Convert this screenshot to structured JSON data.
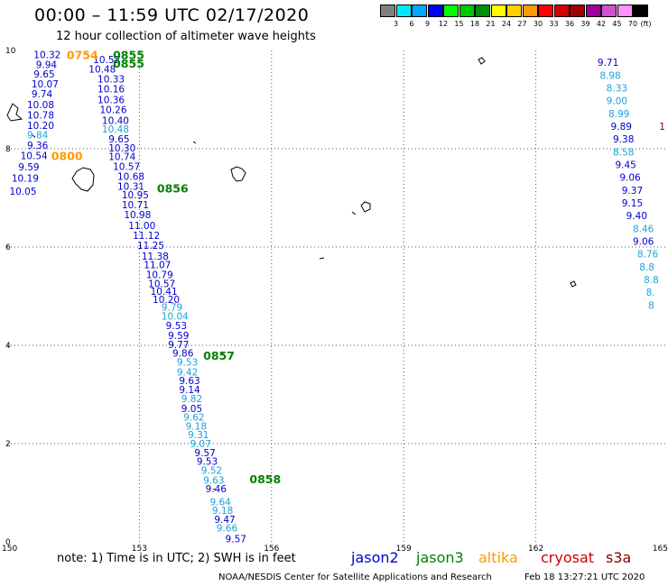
{
  "header": {
    "title": "00:00 – 11:59 UTC 02/17/2020",
    "subtitle": "12 hour collection of altimeter wave heights"
  },
  "legend": {
    "unit": "(ft)",
    "bins": [
      {
        "label": "3",
        "color": "#7f7f7f"
      },
      {
        "label": "6",
        "color": "#00e8ff"
      },
      {
        "label": "9",
        "color": "#00a8ff"
      },
      {
        "label": "12",
        "color": "#0000ff"
      },
      {
        "label": "15",
        "color": "#00ff00"
      },
      {
        "label": "18",
        "color": "#00c800"
      },
      {
        "label": "21",
        "color": "#009000"
      },
      {
        "label": "24",
        "color": "#ffff00"
      },
      {
        "label": "27",
        "color": "#ffd000"
      },
      {
        "label": "30",
        "color": "#ff9a00"
      },
      {
        "label": "33",
        "color": "#ff0000"
      },
      {
        "label": "36",
        "color": "#d40000"
      },
      {
        "label": "39",
        "color": "#a00000"
      },
      {
        "label": "42",
        "color": "#a000a0"
      },
      {
        "label": "45",
        "color": "#d050d0"
      },
      {
        "label": "70",
        "color": "#ff90ff"
      },
      {
        "label": "",
        "color": "#000000"
      }
    ]
  },
  "map": {
    "lon_range": [
      150,
      165
    ],
    "lat_range": [
      0,
      10
    ],
    "lon_ticks": [
      "150",
      "153",
      "156",
      "159",
      "162",
      "165"
    ],
    "lat_ticks": [
      "0",
      "2",
      "4",
      "6",
      "8",
      "10"
    ]
  },
  "satellite_colors": {
    "jason2": "#0000cc",
    "jason3": "#008000",
    "altika": "#ff9900",
    "cryosat": "#cc0000",
    "s3a": "#880000",
    "light": "#1aa3d9"
  },
  "tracks": [
    {
      "name": "jason2-track-west",
      "points": [
        {
          "lon": 150.6,
          "lat": 9.92,
          "v": "10.32",
          "c": "dark"
        },
        {
          "lon": 150.65,
          "lat": 9.72,
          "v": "9.94",
          "c": "dark"
        },
        {
          "lon": 150.6,
          "lat": 9.52,
          "v": "9.65",
          "c": "dark"
        },
        {
          "lon": 150.55,
          "lat": 9.32,
          "v": "10.07",
          "c": "dark"
        },
        {
          "lon": 150.55,
          "lat": 9.12,
          "v": "9.74",
          "c": "dark"
        },
        {
          "lon": 150.45,
          "lat": 8.9,
          "v": "10.08",
          "c": "dark"
        },
        {
          "lon": 150.45,
          "lat": 8.69,
          "v": "10.78",
          "c": "dark"
        },
        {
          "lon": 150.45,
          "lat": 8.48,
          "v": "10.20",
          "c": "dark"
        },
        {
          "lon": 150.45,
          "lat": 8.28,
          "v": "9.84",
          "c": "light"
        },
        {
          "lon": 150.45,
          "lat": 8.07,
          "v": "9.36",
          "c": "dark"
        },
        {
          "lon": 150.3,
          "lat": 7.86,
          "v": "10.54",
          "c": "dark"
        },
        {
          "lon": 150.25,
          "lat": 7.63,
          "v": "9.59",
          "c": "dark"
        },
        {
          "lon": 150.1,
          "lat": 7.4,
          "v": "10.19",
          "c": "dark"
        },
        {
          "lon": 150.05,
          "lat": 7.14,
          "v": "10.05",
          "c": "dark"
        }
      ]
    },
    {
      "name": "jason2-track-east",
      "points": [
        {
          "lon": 163.4,
          "lat": 9.76,
          "v": "9.71",
          "c": "dark"
        },
        {
          "lon": 163.45,
          "lat": 9.5,
          "v": "8.98",
          "c": "light"
        },
        {
          "lon": 163.6,
          "lat": 9.24,
          "v": "8.33",
          "c": "light"
        },
        {
          "lon": 163.6,
          "lat": 8.98,
          "v": "9.00",
          "c": "light"
        },
        {
          "lon": 163.65,
          "lat": 8.72,
          "v": "8.99",
          "c": "light"
        },
        {
          "lon": 163.7,
          "lat": 8.46,
          "v": "9.89",
          "c": "dark"
        },
        {
          "lon": 163.75,
          "lat": 8.2,
          "v": "9.38",
          "c": "dark"
        },
        {
          "lon": 163.75,
          "lat": 7.94,
          "v": "8.58",
          "c": "light"
        },
        {
          "lon": 163.8,
          "lat": 7.68,
          "v": "9.45",
          "c": "dark"
        },
        {
          "lon": 163.9,
          "lat": 7.42,
          "v": "9.06",
          "c": "dark"
        },
        {
          "lon": 163.95,
          "lat": 7.16,
          "v": "9.37",
          "c": "dark"
        },
        {
          "lon": 163.95,
          "lat": 6.9,
          "v": "9.15",
          "c": "dark"
        },
        {
          "lon": 164.05,
          "lat": 6.64,
          "v": "9.40",
          "c": "dark"
        },
        {
          "lon": 164.2,
          "lat": 6.38,
          "v": "8.46",
          "c": "light"
        },
        {
          "lon": 164.2,
          "lat": 6.12,
          "v": "9.06",
          "c": "dark"
        },
        {
          "lon": 164.3,
          "lat": 5.86,
          "v": "8.76",
          "c": "light"
        },
        {
          "lon": 164.35,
          "lat": 5.6,
          "v": "8.8",
          "c": "light"
        },
        {
          "lon": 164.45,
          "lat": 5.34,
          "v": "8.8",
          "c": "light"
        },
        {
          "lon": 164.5,
          "lat": 5.08,
          "v": "8.",
          "c": "light"
        },
        {
          "lon": 164.55,
          "lat": 4.82,
          "v": "8",
          "c": "light"
        },
        {
          "lon": 164.8,
          "lat": 8.46,
          "v": "1",
          "c": "s3a"
        }
      ]
    },
    {
      "name": "main-diagonal-track",
      "points": [
        {
          "lon": 151.95,
          "lat": 9.82,
          "v": "10.52",
          "c": "dark"
        },
        {
          "lon": 151.85,
          "lat": 9.62,
          "v": "10.48",
          "c": "dark"
        },
        {
          "lon": 152.05,
          "lat": 9.42,
          "v": "10.33",
          "c": "dark"
        },
        {
          "lon": 152.05,
          "lat": 9.22,
          "v": "10.16",
          "c": "dark"
        },
        {
          "lon": 152.05,
          "lat": 9.0,
          "v": "10.36",
          "c": "dark"
        },
        {
          "lon": 152.1,
          "lat": 8.8,
          "v": "10.26",
          "c": "dark"
        },
        {
          "lon": 152.15,
          "lat": 8.58,
          "v": "10.40",
          "c": "dark"
        },
        {
          "lon": 152.15,
          "lat": 8.4,
          "v": "10.48",
          "c": "light"
        },
        {
          "lon": 152.3,
          "lat": 8.2,
          "v": "9.65",
          "c": "dark"
        },
        {
          "lon": 152.3,
          "lat": 8.02,
          "v": "10.30",
          "c": "dark"
        },
        {
          "lon": 152.3,
          "lat": 7.84,
          "v": "10.74",
          "c": "dark"
        },
        {
          "lon": 152.4,
          "lat": 7.64,
          "v": "10.57",
          "c": "dark"
        },
        {
          "lon": 152.5,
          "lat": 7.44,
          "v": "10.68",
          "c": "dark"
        },
        {
          "lon": 152.5,
          "lat": 7.24,
          "v": "10.31",
          "c": "dark"
        },
        {
          "lon": 152.6,
          "lat": 7.06,
          "v": "10.95",
          "c": "dark"
        },
        {
          "lon": 152.6,
          "lat": 6.86,
          "v": "10.71",
          "c": "dark"
        },
        {
          "lon": 152.65,
          "lat": 6.66,
          "v": "10.98",
          "c": "dark"
        },
        {
          "lon": 152.75,
          "lat": 6.44,
          "v": "11.00",
          "c": "dark"
        },
        {
          "lon": 152.85,
          "lat": 6.24,
          "v": "11.12",
          "c": "dark"
        },
        {
          "lon": 152.95,
          "lat": 6.04,
          "v": "11.25",
          "c": "dark"
        },
        {
          "lon": 153.05,
          "lat": 5.82,
          "v": "11.38",
          "c": "dark"
        },
        {
          "lon": 153.1,
          "lat": 5.64,
          "v": "11.07",
          "c": "dark"
        },
        {
          "lon": 153.15,
          "lat": 5.44,
          "v": "10.79",
          "c": "dark"
        },
        {
          "lon": 153.2,
          "lat": 5.26,
          "v": "10.57",
          "c": "dark"
        },
        {
          "lon": 153.25,
          "lat": 5.1,
          "v": "10.41",
          "c": "dark"
        },
        {
          "lon": 153.3,
          "lat": 4.94,
          "v": "10.20",
          "c": "dark"
        },
        {
          "lon": 153.5,
          "lat": 4.78,
          "v": "9.79",
          "c": "light"
        },
        {
          "lon": 153.5,
          "lat": 4.6,
          "v": "10.04",
          "c": "light"
        },
        {
          "lon": 153.6,
          "lat": 4.4,
          "v": "9.53",
          "c": "dark"
        },
        {
          "lon": 153.65,
          "lat": 4.2,
          "v": "9.59",
          "c": "dark"
        },
        {
          "lon": 153.65,
          "lat": 4.02,
          "v": "9.77",
          "c": "dark"
        },
        {
          "lon": 153.75,
          "lat": 3.84,
          "v": "9.86",
          "c": "dark"
        },
        {
          "lon": 153.85,
          "lat": 3.66,
          "v": "9.53",
          "c": "light"
        },
        {
          "lon": 153.85,
          "lat": 3.46,
          "v": "9.42",
          "c": "light"
        },
        {
          "lon": 153.9,
          "lat": 3.28,
          "v": "9.63",
          "c": "dark"
        },
        {
          "lon": 153.9,
          "lat": 3.1,
          "v": "9.14",
          "c": "dark"
        },
        {
          "lon": 153.95,
          "lat": 2.92,
          "v": "9.82",
          "c": "light"
        },
        {
          "lon": 153.95,
          "lat": 2.72,
          "v": "9.05",
          "c": "dark"
        },
        {
          "lon": 154.0,
          "lat": 2.54,
          "v": "9.62",
          "c": "light"
        },
        {
          "lon": 154.05,
          "lat": 2.36,
          "v": "9.18",
          "c": "light"
        },
        {
          "lon": 154.1,
          "lat": 2.18,
          "v": "9.31",
          "c": "light"
        },
        {
          "lon": 154.15,
          "lat": 2.0,
          "v": "9.07",
          "c": "light"
        },
        {
          "lon": 154.25,
          "lat": 1.82,
          "v": "9.57",
          "c": "dark"
        },
        {
          "lon": 154.3,
          "lat": 1.64,
          "v": "9.53",
          "c": "dark"
        },
        {
          "lon": 154.4,
          "lat": 1.46,
          "v": "9.52",
          "c": "light"
        },
        {
          "lon": 154.45,
          "lat": 1.26,
          "v": "9.63",
          "c": "light"
        },
        {
          "lon": 154.5,
          "lat": 1.08,
          "v": "9.46",
          "c": "dark"
        },
        {
          "lon": 154.6,
          "lat": 0.82,
          "v": "9.64",
          "c": "light"
        },
        {
          "lon": 154.65,
          "lat": 0.64,
          "v": "9.18",
          "c": "light"
        },
        {
          "lon": 154.7,
          "lat": 0.46,
          "v": "9.47",
          "c": "dark"
        },
        {
          "lon": 154.75,
          "lat": 0.28,
          "v": "9.66",
          "c": "light"
        },
        {
          "lon": 154.95,
          "lat": 0.06,
          "v": "9.57",
          "c": "dark"
        }
      ]
    }
  ],
  "times": [
    {
      "lon": 151.35,
      "lat": 9.92,
      "v": "0754",
      "c": "altika"
    },
    {
      "lon": 152.4,
      "lat": 9.92,
      "v": "0855",
      "c": "jason3"
    },
    {
      "lon": 152.4,
      "lat": 9.74,
      "v": "0855",
      "c": "jason3"
    },
    {
      "lon": 151.0,
      "lat": 7.86,
      "v": "0800",
      "c": "altika"
    },
    {
      "lon": 153.4,
      "lat": 7.2,
      "v": "0856",
      "c": "jason3"
    },
    {
      "lon": 154.45,
      "lat": 3.8,
      "v": "0857",
      "c": "jason3"
    },
    {
      "lon": 155.5,
      "lat": 1.28,
      "v": "0858",
      "c": "jason3"
    }
  ],
  "footer": {
    "note": "note: 1) Time is in UTC; 2) SWH is in feet",
    "satellites": [
      {
        "label": "jason2",
        "color": "#0000cc"
      },
      {
        "label": "jason3",
        "color": "#008000"
      },
      {
        "label": "altika",
        "color": "#ff9900"
      },
      {
        "label": "cryosat",
        "color": "#cc0000"
      },
      {
        "label": "s3a",
        "color": "#880000"
      }
    ],
    "credit": "NOAA/NESDIS Center for Satellite Applications and Research",
    "timestamp": "Feb 18 13:27:21 UTC 2020"
  }
}
